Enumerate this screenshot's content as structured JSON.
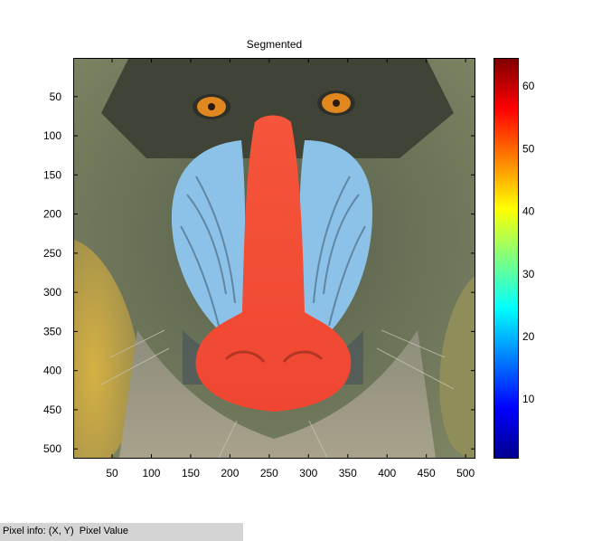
{
  "figure": {
    "title": "Segmented"
  },
  "image_axes": {
    "x_ticks": [
      50,
      100,
      150,
      200,
      250,
      300,
      350,
      400,
      450,
      500
    ],
    "y_ticks": [
      50,
      100,
      150,
      200,
      250,
      300,
      350,
      400,
      450,
      500
    ],
    "x_range": [
      0.5,
      512.5
    ],
    "y_range": [
      0.5,
      512.5
    ]
  },
  "colorbar": {
    "ticks": [
      10,
      20,
      30,
      40,
      50,
      60
    ],
    "range": [
      1,
      64
    ],
    "colormap": "jet"
  },
  "status": {
    "text": "Pixel info: (X, Y)  Pixel Value"
  },
  "colors": {
    "background": "#ffffff",
    "statusbar": "#d4d4d4",
    "nose_red": "#f04a35",
    "cheek_blue": "#8cc2e8",
    "eye_orange": "#e0881f",
    "fur_olive": "#6b7358"
  }
}
